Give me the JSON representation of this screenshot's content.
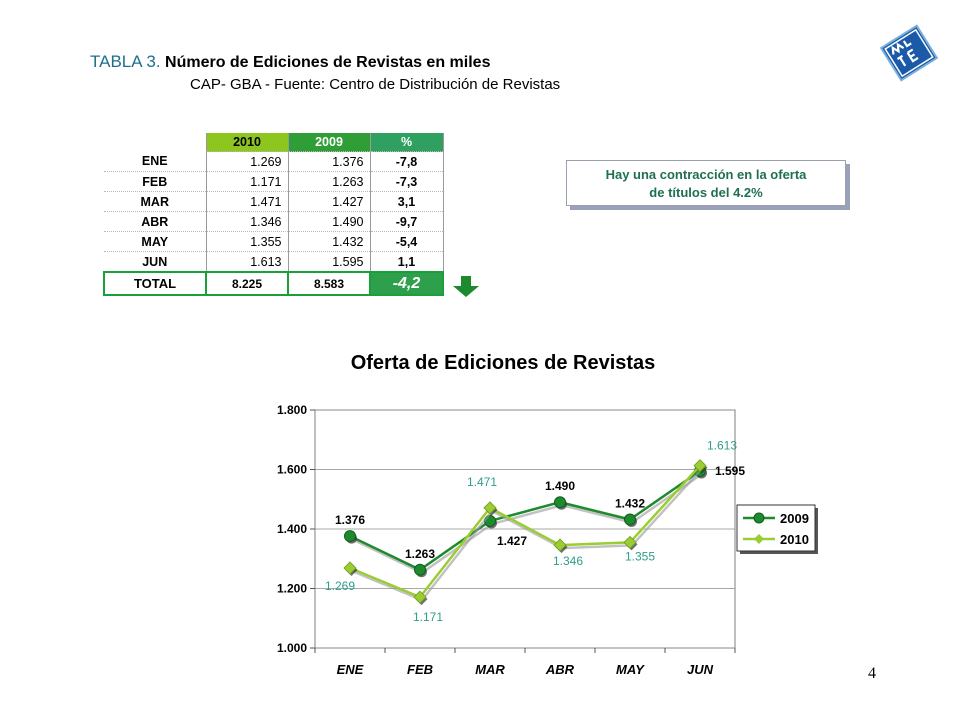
{
  "header": {
    "title_lead": "TABLA 3.",
    "title_rest": " Número de Ediciones de Revistas en miles",
    "subtitle": "CAP- GBA - Fuente:  Centro de Distribución de Revistas"
  },
  "table": {
    "headers": [
      "2010",
      "2009",
      "%"
    ],
    "rows": [
      {
        "month": "ENE",
        "v2010": "1.269",
        "v2009": "1.376",
        "pct": "-7,8"
      },
      {
        "month": "FEB",
        "v2010": "1.171",
        "v2009": "1.263",
        "pct": "-7,3"
      },
      {
        "month": "MAR",
        "v2010": "1.471",
        "v2009": "1.427",
        "pct": "3,1"
      },
      {
        "month": "ABR",
        "v2010": "1.346",
        "v2009": "1.490",
        "pct": "-9,7"
      },
      {
        "month": "MAY",
        "v2010": "1.355",
        "v2009": "1.432",
        "pct": "-5,4"
      },
      {
        "month": "JUN",
        "v2010": "1.613",
        "v2009": "1.595",
        "pct": "1,1"
      }
    ],
    "total": {
      "label": "TOTAL",
      "v2010": "8.225",
      "v2009": "8.583",
      "pct": "-4,2"
    }
  },
  "note": {
    "line1": "Hay una contracción en la oferta",
    "line2": "de títulos del 4.2%"
  },
  "page_number": "4",
  "colors": {
    "series_2009": "#1e8a2e",
    "series_2010": "#9acd32",
    "accent_teal": "#1f6f8b"
  },
  "chart_data": {
    "type": "line",
    "title": "Oferta de Ediciones de Revistas",
    "categories": [
      "ENE",
      "FEB",
      "MAR",
      "ABR",
      "MAY",
      "JUN"
    ],
    "ylim": [
      1000,
      1800
    ],
    "yticks": [
      1000,
      1200,
      1400,
      1600,
      1800
    ],
    "ytick_labels": [
      "1.000",
      "1.200",
      "1.400",
      "1.600",
      "1.800"
    ],
    "grid": true,
    "legend": "right",
    "series": [
      {
        "name": "2009",
        "values": [
          1376,
          1263,
          1427,
          1490,
          1432,
          1595
        ],
        "labels": [
          "1.376",
          "1.263",
          "1.427",
          "1.490",
          "1.432",
          "1.595"
        ],
        "color": "#1e8a2e",
        "marker": "circle"
      },
      {
        "name": "2010",
        "values": [
          1269,
          1171,
          1471,
          1346,
          1355,
          1613
        ],
        "labels": [
          "1.269",
          "1.171",
          "1.471",
          "1.346",
          "1.355",
          "1.613"
        ],
        "color": "#9acd32",
        "marker": "diamond"
      }
    ]
  }
}
